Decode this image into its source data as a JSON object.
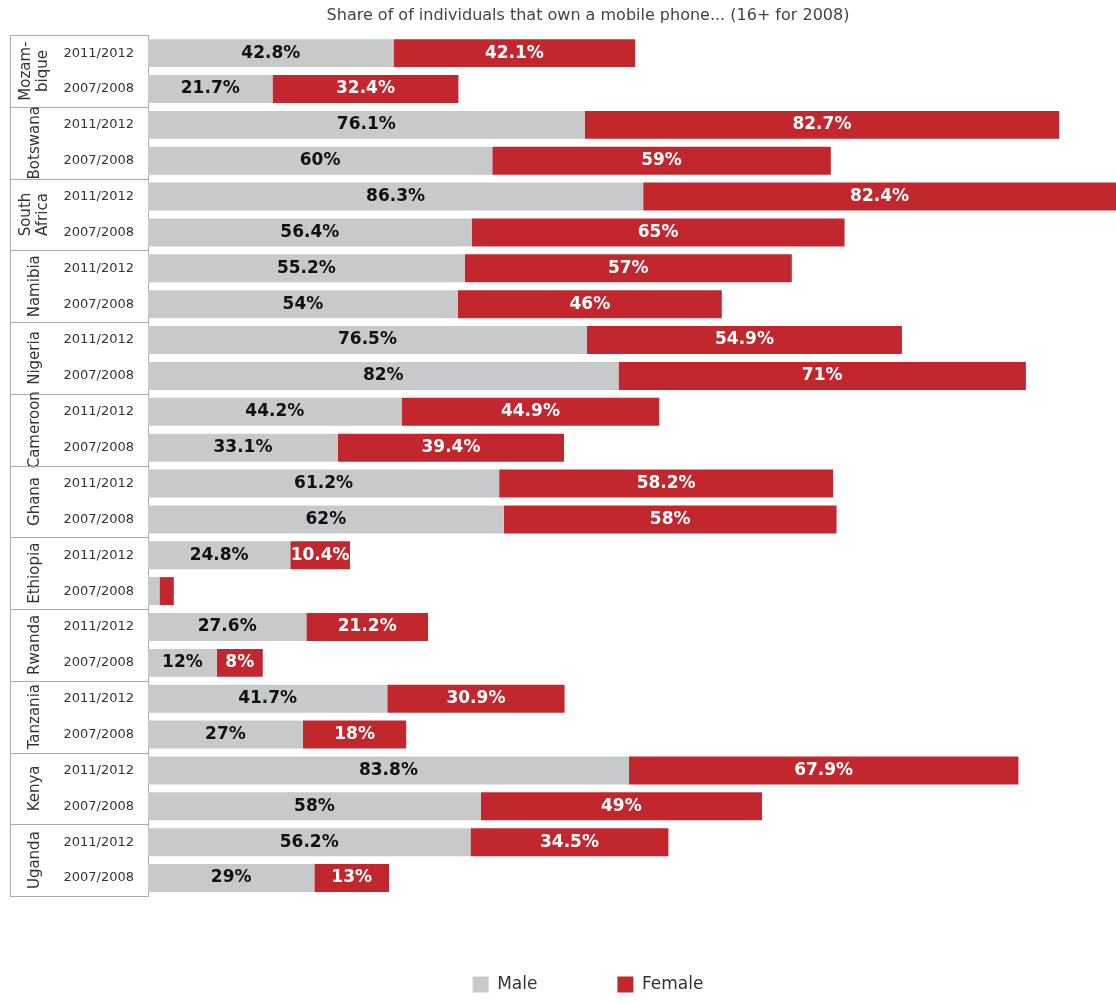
{
  "chart_data": {
    "type": "bar",
    "orientation": "horizontal",
    "stacked": true,
    "title": "Share of of individuals that own a mobile phone... (16+ for 2008)",
    "categories": [
      "2011/2012",
      "2007/2008",
      "2011/2012",
      "2007/2008",
      "2011/2012",
      "2007/2008",
      "2011/2012",
      "2007/2008",
      "2011/2012",
      "2007/2008",
      "2011/2012",
      "2007/2008",
      "2011/2012",
      "2007/2008",
      "2011/2012",
      "2007/2008",
      "2011/2012",
      "2007/2008",
      "2011/2012",
      "2007/2008",
      "2011/2012",
      "2007/2008",
      "2011/2012",
      "2007/2008"
    ],
    "series": [
      {
        "name": "Male",
        "color": "#c8c9cb",
        "values": [
          42.8,
          21.7,
          76.1,
          60,
          86.3,
          56.4,
          55.2,
          54,
          76.5,
          82,
          44.2,
          33.1,
          61.2,
          62,
          24.8,
          2,
          27.6,
          12,
          41.7,
          27,
          83.8,
          58,
          56.2,
          29
        ],
        "value_labels": [
          "42.8%",
          "21.7%",
          "76.1%",
          "60%",
          "86.3%",
          "56.4%",
          "55.2%",
          "54%",
          "76.5%",
          "82%",
          "44.2%",
          "33.1%",
          "61.2%",
          "62%",
          "24.8%",
          null,
          "27.6%",
          "12%",
          "41.7%",
          "27%",
          "83.8%",
          "58%",
          "56.2%",
          "29%"
        ]
      },
      {
        "name": "Female",
        "color": "#c1272d",
        "values": [
          42.1,
          32.4,
          82.7,
          59,
          82.4,
          65,
          57,
          46,
          54.9,
          71,
          44.9,
          39.4,
          58.2,
          58,
          10.4,
          2.5,
          21.2,
          8,
          30.9,
          18,
          67.9,
          49,
          34.5,
          13
        ],
        "value_labels": [
          "42.1%",
          "32.4%",
          "82.7%",
          "59%",
          "82.4%",
          "65%",
          "57%",
          "46%",
          "54.9%",
          "71%",
          "44.9%",
          "39.4%",
          "58.2%",
          "58%",
          "10.4%",
          null,
          "21.2%",
          "8%",
          "30.9%",
          "18%",
          "67.9%",
          "49%",
          "34.5%",
          "13%"
        ]
      }
    ],
    "annotations": [
      "Mozam-bique",
      "Botswana",
      "South Africa",
      "Namibia",
      "Nigeria",
      "Cameroon",
      "Ghana",
      "Ethiopia",
      "Rwanda",
      "Tanzania",
      "Kenya",
      "Uganda"
    ],
    "tick_labels": "y",
    "legend": "bottom"
  }
}
